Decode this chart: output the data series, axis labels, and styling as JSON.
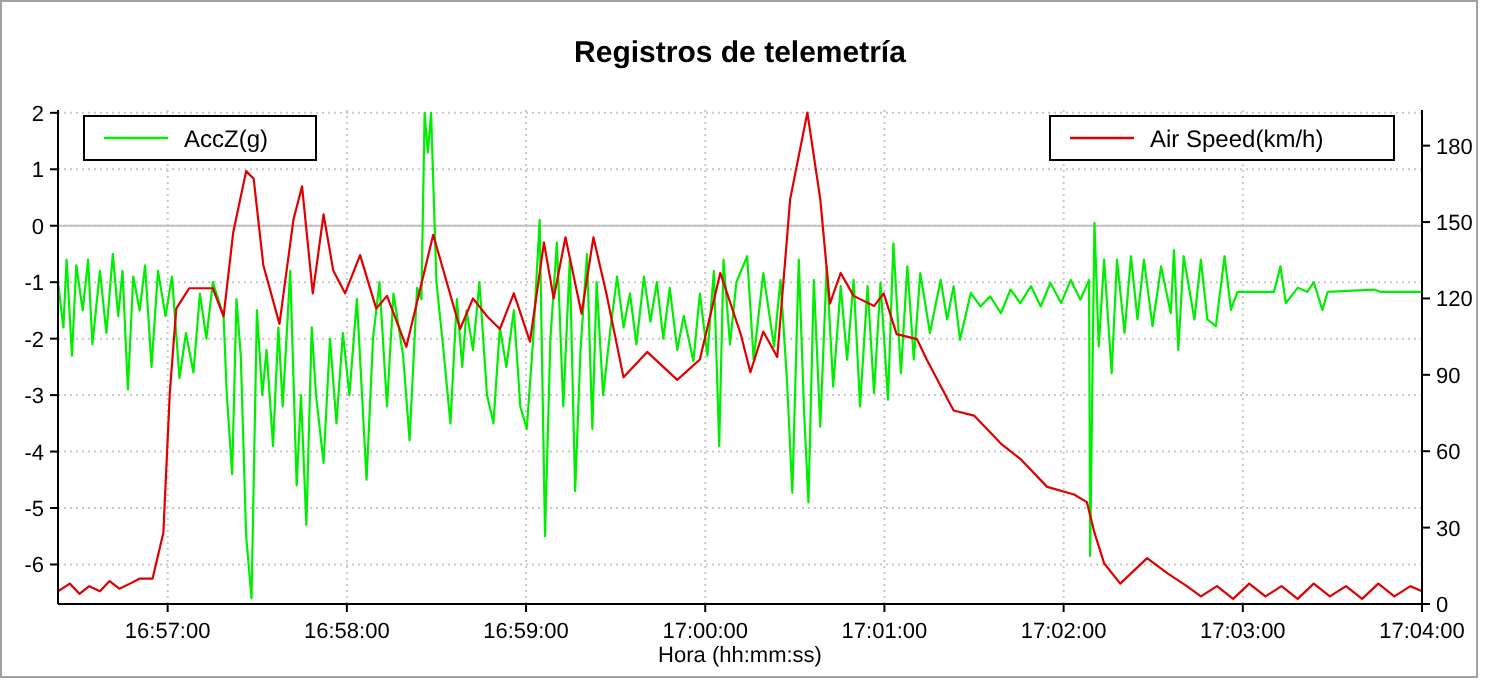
{
  "chart_data": {
    "type": "line",
    "title": "Registros de telemetría",
    "xlabel": "Hora (hh:mm:ss)",
    "xlim": [
      16.9398,
      17.066667
    ],
    "xticks": [
      {
        "value": 16.95,
        "label": "16:57:00"
      },
      {
        "value": 16.966667,
        "label": "16:58:00"
      },
      {
        "value": 16.983333,
        "label": "16:59:00"
      },
      {
        "value": 17.0,
        "label": "17:00:00"
      },
      {
        "value": 17.016667,
        "label": "17:01:00"
      },
      {
        "value": 17.033333,
        "label": "17:02:00"
      },
      {
        "value": 17.05,
        "label": "17:03:00"
      },
      {
        "value": 17.066667,
        "label": "17:04:00"
      }
    ],
    "ylim": [
      -6.7,
      2.05
    ],
    "yticks": [
      -6,
      -5,
      -4,
      -3,
      -2,
      -1,
      0,
      1,
      2
    ],
    "y2lim": [
      0,
      194
    ],
    "y2ticks": [
      0,
      30,
      60,
      90,
      120,
      150,
      180
    ],
    "grid": true,
    "legend": "top",
    "ref_lines": [
      {
        "axis": "y",
        "value": 0,
        "color": "#c0c0c0",
        "line_style": "solid"
      }
    ],
    "series": [
      {
        "name": "AccZ(g)",
        "color": "#00ee00",
        "axis": "y",
        "x": [
          16.9398,
          16.9403,
          16.9406,
          16.9411,
          16.9415,
          16.9421,
          16.9426,
          16.943,
          16.9437,
          16.9443,
          16.9449,
          16.9454,
          16.9458,
          16.9463,
          16.9468,
          16.9474,
          16.9479,
          16.9485,
          16.9491,
          16.9498,
          16.9504,
          16.9511,
          16.9517,
          16.9524,
          16.953,
          16.9536,
          16.9542,
          16.9552,
          16.9555,
          16.956,
          16.9564,
          16.9568,
          16.9573,
          16.9578,
          16.9583,
          16.9588,
          16.9592,
          16.9598,
          16.9603,
          16.9607,
          16.9614,
          16.962,
          16.9624,
          16.9629,
          16.9634,
          16.9638,
          16.9645,
          16.9651,
          16.9657,
          16.9663,
          16.9669,
          16.9676,
          16.9685,
          16.9691,
          16.9697,
          16.9704,
          16.971,
          16.9719,
          16.9725,
          16.9732,
          16.9736,
          16.9739,
          16.9742,
          16.9745,
          16.975,
          16.9756,
          16.9763,
          16.9769,
          16.9774,
          16.9778,
          16.9784,
          16.979,
          16.9797,
          16.9803,
          16.9809,
          16.9815,
          16.9822,
          16.9828,
          16.9834,
          16.984,
          16.9846,
          16.9851,
          16.9856,
          16.9862,
          16.9868,
          16.9874,
          16.9879,
          16.9884,
          16.989,
          16.9895,
          16.9899,
          16.9905,
          16.9912,
          16.9918,
          16.9924,
          16.993,
          16.9936,
          16.9943,
          16.9949,
          16.9955,
          16.9961,
          16.9967,
          16.9974,
          16.998,
          16.9989,
          16.9995,
          17.0002,
          17.0008,
          17.0013,
          17.0017,
          17.0023,
          17.0029,
          17.0039,
          17.0045,
          17.0054,
          17.0064,
          17.007,
          17.0076,
          17.0081,
          17.0087,
          17.0092,
          17.0096,
          17.0101,
          17.0107,
          17.0113,
          17.0119,
          17.0126,
          17.0132,
          17.0138,
          17.0144,
          17.0151,
          17.0157,
          17.0163,
          17.017,
          17.0175,
          17.0182,
          17.0188,
          17.0194,
          17.02,
          17.0209,
          17.0219,
          17.0225,
          17.0231,
          17.0237,
          17.0247,
          17.0256,
          17.0265,
          17.0275,
          17.0284,
          17.0293,
          17.0303,
          17.0312,
          17.0321,
          17.0331,
          17.034,
          17.0349,
          17.0357,
          17.0358,
          17.0362,
          17.0366,
          17.0371,
          17.0378,
          17.0383,
          17.039,
          17.0396,
          17.0402,
          17.0408,
          17.0416,
          17.0424,
          17.0433,
          17.0436,
          17.044,
          17.0445,
          17.0455,
          17.0461,
          17.0467,
          17.0475,
          17.0483,
          17.0489,
          17.0495,
          17.0529,
          17.0535,
          17.054,
          17.0551,
          17.056,
          17.0566,
          17.0574,
          17.0579,
          17.0622,
          17.0628,
          17.066667
        ],
        "values": [
          -1.0,
          -1.8,
          -0.6,
          -2.3,
          -0.7,
          -1.5,
          -0.6,
          -2.1,
          -0.8,
          -1.9,
          -0.5,
          -1.6,
          -0.8,
          -2.9,
          -0.9,
          -1.5,
          -0.7,
          -2.5,
          -0.8,
          -1.6,
          -0.9,
          -2.7,
          -1.9,
          -2.6,
          -1.2,
          -2.0,
          -1.0,
          -1.6,
          -3.0,
          -4.4,
          -1.3,
          -2.3,
          -5.5,
          -6.6,
          -1.5,
          -3.0,
          -2.2,
          -3.9,
          -1.8,
          -3.2,
          -0.8,
          -4.6,
          -3.0,
          -5.3,
          -1.8,
          -3.0,
          -4.2,
          -2.0,
          -3.5,
          -1.9,
          -3.0,
          -1.3,
          -4.5,
          -2.0,
          -1.0,
          -3.2,
          -1.2,
          -2.3,
          -3.8,
          -1.1,
          -1.3,
          2.0,
          1.3,
          2.0,
          -1.0,
          -2.1,
          -3.5,
          -1.3,
          -2.5,
          -1.5,
          -2.2,
          -1.0,
          -3.0,
          -3.5,
          -1.8,
          -2.5,
          -1.5,
          -3.2,
          -3.6,
          -2.0,
          0.1,
          -5.5,
          -2.0,
          -0.3,
          -3.2,
          -0.6,
          -4.7,
          -2.2,
          -0.5,
          -3.6,
          -1.0,
          -3.0,
          -1.8,
          -0.9,
          -1.8,
          -1.2,
          -2.1,
          -0.9,
          -1.7,
          -1.0,
          -2.0,
          -1.1,
          -2.2,
          -1.6,
          -2.4,
          -1.2,
          -2.3,
          -0.8,
          -3.9,
          -0.6,
          -2.1,
          -1.0,
          -0.54,
          -2.37,
          -0.84,
          -2.14,
          -0.96,
          -2.73,
          -4.73,
          -0.6,
          -3.32,
          -4.9,
          -0.96,
          -3.56,
          -0.72,
          -2.85,
          -1.07,
          -2.37,
          -0.96,
          -3.2,
          -1.07,
          -2.96,
          -1.01,
          -3.08,
          -0.31,
          -2.61,
          -0.72,
          -2.37,
          -0.84,
          -1.9,
          -0.96,
          -1.66,
          -1.07,
          -2.02,
          -1.19,
          -1.43,
          -1.25,
          -1.55,
          -1.13,
          -1.37,
          -1.07,
          -1.43,
          -1.01,
          -1.37,
          -0.96,
          -1.31,
          -0.96,
          -5.85,
          0.05,
          -2.14,
          -0.6,
          -2.61,
          -0.6,
          -1.9,
          -0.54,
          -1.66,
          -0.6,
          -1.78,
          -0.72,
          -1.55,
          -0.43,
          -2.2,
          -0.54,
          -1.66,
          -0.6,
          -1.66,
          -1.78,
          -0.54,
          -1.49,
          -1.17,
          -1.17,
          -0.72,
          -1.37,
          -1.1,
          -1.17,
          -1.0,
          -1.49,
          -1.17,
          -1.13,
          -1.17,
          -1.17
        ]
      },
      {
        "name": "Air Speed(km/h)",
        "color": "#e00000",
        "axis": "y2",
        "x": [
          16.9398,
          16.9409,
          16.9418,
          16.9427,
          16.9437,
          16.9446,
          16.9455,
          16.9465,
          16.9474,
          16.9486,
          16.9496,
          16.9502,
          16.9508,
          16.952,
          16.9542,
          16.9552,
          16.9561,
          16.9573,
          16.958,
          16.9589,
          16.9604,
          16.9617,
          16.9625,
          16.9635,
          16.9645,
          16.9654,
          16.9665,
          16.9679,
          16.9694,
          16.9704,
          16.9722,
          16.9735,
          16.9747,
          16.9772,
          16.9784,
          16.9797,
          16.9809,
          16.9822,
          16.9837,
          16.985,
          16.9859,
          16.987,
          16.9885,
          16.9896,
          16.9908,
          16.9924,
          16.9946,
          16.9974,
          16.9995,
          17.0014,
          17.0033,
          17.0042,
          17.0054,
          17.0067,
          17.0079,
          17.0095,
          17.0107,
          17.0116,
          17.0126,
          17.0138,
          17.0157,
          17.0166,
          17.0178,
          17.0197,
          17.0206,
          17.0231,
          17.025,
          17.0275,
          17.0293,
          17.0318,
          17.0343,
          17.0355,
          17.0362,
          17.0371,
          17.0386,
          17.0411,
          17.043,
          17.0448,
          17.0461,
          17.0476,
          17.0491,
          17.0506,
          17.0521,
          17.0536,
          17.0551,
          17.0566,
          17.0581,
          17.0596,
          17.0611,
          17.0626,
          17.0641,
          17.0656,
          17.066667
        ],
        "values": [
          5,
          8,
          4,
          7,
          5,
          9,
          6,
          8,
          10,
          10,
          28,
          83,
          116,
          124,
          124,
          113,
          146,
          170,
          167,
          133,
          110,
          151,
          164,
          122,
          153,
          131,
          122,
          137,
          116,
          121,
          101,
          124,
          145,
          108,
          120,
          113,
          108,
          122,
          103,
          142,
          120,
          144,
          114,
          144,
          122,
          89,
          99,
          88,
          96,
          130,
          106,
          91,
          107,
          97,
          159,
          193,
          159,
          118,
          130,
          121,
          117,
          122,
          106,
          104,
          96,
          76,
          74,
          63,
          57,
          46,
          43,
          40,
          28,
          16,
          8,
          18,
          12,
          7,
          3,
          7,
          2,
          8,
          3,
          7,
          2,
          8,
          3,
          7,
          2,
          8,
          3,
          7,
          5
        ]
      }
    ]
  }
}
